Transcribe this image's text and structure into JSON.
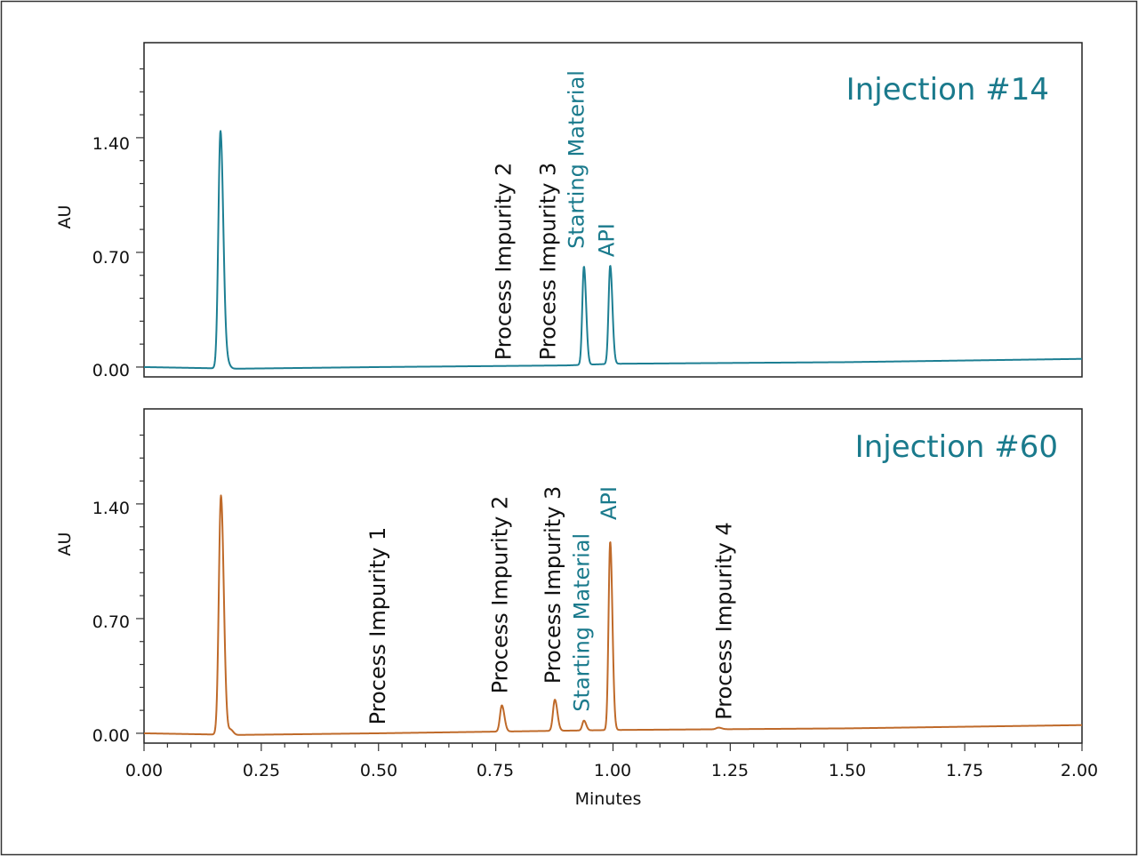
{
  "colors": {
    "frame": "#222222",
    "axis": "#333333",
    "text": "#111111",
    "label_teal": "#1a7a8c",
    "trace_top": "#1d7f93",
    "trace_bottom": "#bf6a2a"
  },
  "chart_data": [
    {
      "type": "line",
      "title": "Injection #14",
      "ylabel": "AU",
      "xlabel": "",
      "xlim": [
        0,
        2.0
      ],
      "ylim": [
        -0.06,
        1.98
      ],
      "y_ticks": [
        "0.00",
        "0.70",
        "1.40"
      ],
      "y_tick_values": [
        0,
        0.7,
        1.4
      ],
      "grid": false,
      "series": [
        {
          "color": "#1d7f93",
          "baseline": [
            [
              0,
              0.0
            ],
            [
              0.2,
              -0.01
            ],
            [
              0.5,
              0.0
            ],
            [
              0.9,
              0.01
            ],
            [
              1.0,
              0.02
            ],
            [
              1.5,
              0.03
            ],
            [
              2.0,
              0.05
            ]
          ],
          "peaks": [
            {
              "x": 0.163,
              "height": 1.45,
              "width": 0.0045
            },
            {
              "x": 0.178,
              "height": 0.03,
              "width": 0.004
            },
            {
              "x": 0.938,
              "height": 0.6,
              "width": 0.0035
            },
            {
              "x": 0.994,
              "height": 0.6,
              "width": 0.0035
            }
          ]
        }
      ],
      "annotations": [
        {
          "text": "Process Impurity 2",
          "x": 0.765,
          "y": 0.02,
          "color": "black"
        },
        {
          "text": "Process Impurity 3",
          "x": 0.86,
          "y": 0.02,
          "color": "black"
        },
        {
          "text": "Starting Material",
          "x": 0.92,
          "y": 0.7,
          "color": "teal"
        },
        {
          "text": "API",
          "x": 0.985,
          "y": 0.65,
          "color": "teal"
        }
      ]
    },
    {
      "type": "line",
      "title": "Injection #60",
      "ylabel": "AU",
      "xlabel": "Minutes",
      "xlim": [
        0,
        2.0
      ],
      "ylim": [
        -0.06,
        1.98
      ],
      "x_ticks": [
        "0.00",
        "0.25",
        "0.50",
        "0.75",
        "1.00",
        "1.25",
        "1.50",
        "1.75",
        "2.00"
      ],
      "x_tick_values": [
        0,
        0.25,
        0.5,
        0.75,
        1.0,
        1.25,
        1.5,
        1.75,
        2.0
      ],
      "y_ticks": [
        "0.00",
        "0.70",
        "1.40"
      ],
      "y_tick_values": [
        0,
        0.7,
        1.4
      ],
      "grid": false,
      "series": [
        {
          "color": "#bf6a2a",
          "baseline": [
            [
              0,
              0.0
            ],
            [
              0.2,
              -0.01
            ],
            [
              0.5,
              0.0
            ],
            [
              0.75,
              0.01
            ],
            [
              1.0,
              0.02
            ],
            [
              1.5,
              0.03
            ],
            [
              2.0,
              0.05
            ]
          ],
          "peaks": [
            {
              "x": 0.164,
              "height": 1.46,
              "width": 0.0045
            },
            {
              "x": 0.185,
              "height": 0.03,
              "width": 0.004
            },
            {
              "x": 0.763,
              "height": 0.16,
              "width": 0.004
            },
            {
              "x": 0.876,
              "height": 0.19,
              "width": 0.004
            },
            {
              "x": 0.938,
              "height": 0.06,
              "width": 0.0035
            },
            {
              "x": 0.994,
              "height": 1.15,
              "width": 0.0035
            },
            {
              "x": 1.225,
              "height": 0.01,
              "width": 0.005
            }
          ]
        }
      ],
      "annotations": [
        {
          "text": "Process Impurity 1",
          "x": 0.497,
          "y": 0.03,
          "color": "black"
        },
        {
          "text": "Process Impurity 2",
          "x": 0.757,
          "y": 0.22,
          "color": "black"
        },
        {
          "text": "Process Impurity 3",
          "x": 0.87,
          "y": 0.28,
          "color": "black"
        },
        {
          "text": "Starting Material",
          "x": 0.932,
          "y": 0.11,
          "color": "teal"
        },
        {
          "text": "API",
          "x": 0.99,
          "y": 1.28,
          "color": "teal"
        },
        {
          "text": "Process Impurity 4",
          "x": 1.235,
          "y": 0.06,
          "color": "black"
        }
      ]
    }
  ]
}
